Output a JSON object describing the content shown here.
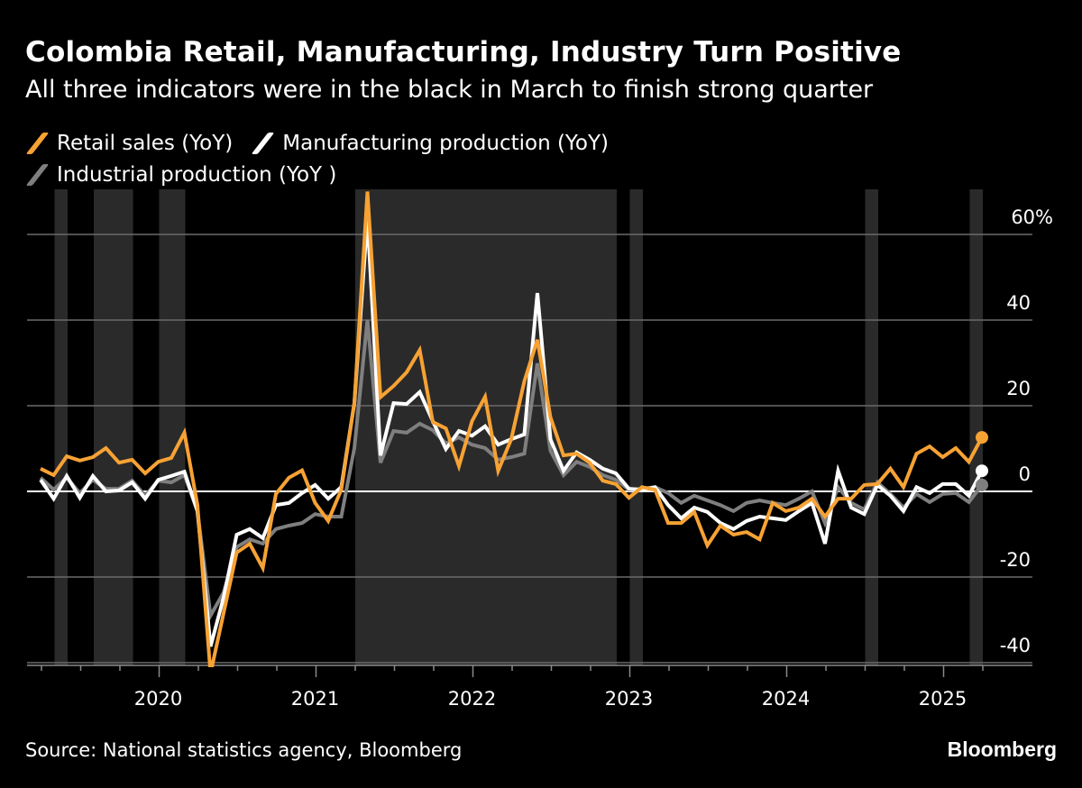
{
  "title": "Colombia Retail, Manufacturing, Industry Turn Positive",
  "subtitle": "All three indicators were in the black in March to finish strong quarter",
  "source": "Source: National statistics agency, Bloomberg",
  "logo": "Bloomberg",
  "chart_data": {
    "type": "line",
    "title": "Colombia Retail, Manufacturing, Industry Turn Positive",
    "xlabel": "",
    "ylabel": "",
    "y_unit": "%",
    "ylim": [
      -40.6,
      70.5
    ],
    "yticks": [
      -40,
      -20,
      0,
      20,
      40,
      60
    ],
    "ytick_labels": [
      "-40",
      "-20",
      "0",
      "20",
      "40",
      "60%"
    ],
    "xticks": [
      "2020",
      "2021",
      "2022",
      "2023",
      "2024",
      "2025"
    ],
    "x_start": "2019-04",
    "x_end": "2025-04",
    "grid": true,
    "legend_placement": "top-left",
    "shaded_periods": [
      [
        "2019-05",
        "2019-06"
      ],
      [
        "2019-08",
        "2019-11"
      ],
      [
        "2020-01",
        "2020-03"
      ],
      [
        "2021-04",
        "2022-12"
      ],
      [
        "2023-01",
        "2023-02"
      ],
      [
        "2024-07",
        "2024-08"
      ],
      [
        "2025-03",
        "2025-04"
      ]
    ],
    "series": [
      {
        "name": "Retail sales (YoY)",
        "color": "#f7a234",
        "values": [
          5.3,
          3.8,
          8.2,
          7.2,
          8,
          10.1,
          6.7,
          7.4,
          4.2,
          6.9,
          7.8,
          13.7,
          -3.2,
          -42.5,
          -28.4,
          -14.3,
          -12.2,
          -17.9,
          -0.6,
          3.2,
          4.9,
          -2.7,
          -6.9,
          0.4,
          20.6,
          70,
          22,
          24.6,
          27.8,
          33,
          16.2,
          14.7,
          5.9,
          16.4,
          22.1,
          4.8,
          12.2,
          25.7,
          35.4,
          17.3,
          8.4,
          8.8,
          6.7,
          2.5,
          1.7,
          -1.5,
          1,
          0.4,
          -7.4,
          -7.4,
          -4.8,
          -12.6,
          -8,
          -10.1,
          -9.5,
          -11.2,
          -2.7,
          -4.6,
          -3.8,
          -1.7,
          -5.9,
          -1.7,
          -1.7,
          1.5,
          1.7,
          5.3,
          1,
          8.8,
          10.5,
          8,
          10.1,
          6.9,
          12.6
        ]
      },
      {
        "name": "Manufacturing production (YoY)",
        "color": "#ffffff",
        "values": [
          2.7,
          -1.7,
          3.6,
          -1.5,
          3.6,
          0,
          0.2,
          2.1,
          -1.7,
          2.7,
          3.6,
          4.6,
          -4.6,
          -36.2,
          -24.8,
          -10.1,
          -8.8,
          -10.9,
          -3.2,
          -2.7,
          -0.4,
          1.5,
          -1.7,
          1,
          20.6,
          64,
          8.4,
          20.6,
          20.4,
          23.2,
          16.4,
          9.9,
          14.1,
          13,
          15.2,
          10.9,
          12.2,
          13.3,
          46.3,
          12.2,
          4.8,
          9.1,
          7.4,
          5.3,
          4.2,
          0.6,
          0.4,
          1,
          -3.2,
          -6.3,
          -3.8,
          -4.8,
          -7.4,
          -8.8,
          -6.9,
          -5.9,
          -6.3,
          -6.7,
          -4.6,
          -2.7,
          -12.2,
          4.8,
          -3.8,
          -5.3,
          1.5,
          -1,
          -4.6,
          1,
          -0.4,
          1.7,
          1.7,
          -1,
          4.8
        ]
      },
      {
        "name": "Industrial production (YoY )",
        "color": "#7f7f7f",
        "values": [
          3.2,
          0.4,
          3.2,
          -0.4,
          2.7,
          0.6,
          0.6,
          2.5,
          -1,
          2.5,
          2.1,
          3.8,
          -4.6,
          -29,
          -23.6,
          -13,
          -11.2,
          -12.2,
          -8.8,
          -8,
          -7.4,
          -5.3,
          -5.9,
          -5.9,
          10.1,
          40,
          6.7,
          14.1,
          13.7,
          15.8,
          14.3,
          11.2,
          12.6,
          10.9,
          10.1,
          7.4,
          8,
          8.8,
          29.9,
          9.5,
          3.8,
          6.9,
          5.7,
          3.8,
          2.7,
          0.4,
          0.6,
          1,
          -0.4,
          -2.7,
          -1,
          -2.1,
          -3.2,
          -4.6,
          -2.7,
          -2.1,
          -2.7,
          -3.2,
          -1.7,
          0,
          -7.4,
          1,
          -2.7,
          -4.2,
          2.1,
          -0.6,
          -3.8,
          -0.6,
          -2.5,
          -0.6,
          -0.4,
          -2.5,
          1.5
        ]
      }
    ]
  }
}
